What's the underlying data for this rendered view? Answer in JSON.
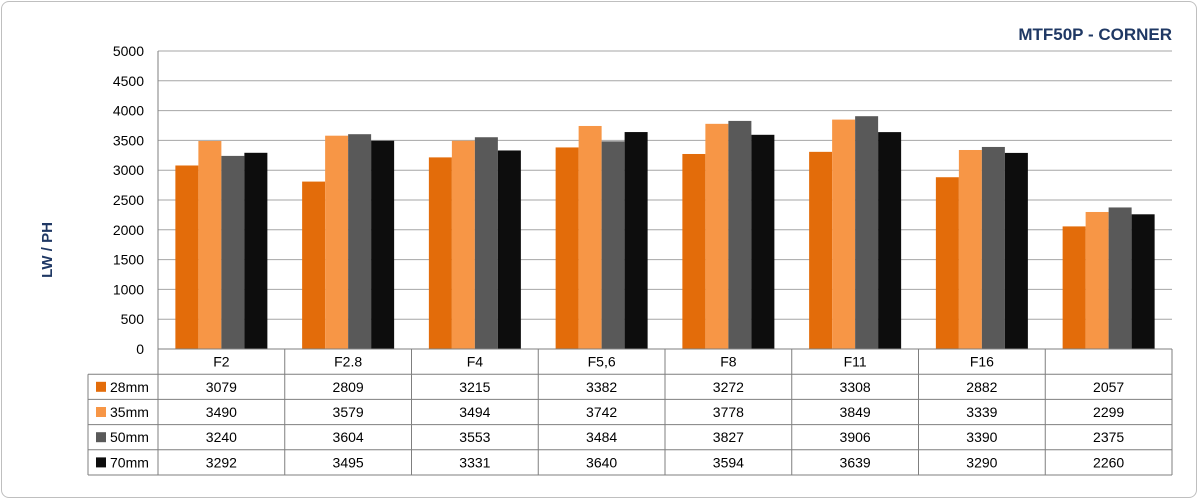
{
  "chart_data": {
    "type": "bar",
    "title": "MTF50P - CORNER",
    "ylabel": "LW / PH",
    "xlabel": "",
    "categories": [
      "F2",
      "F2.8",
      "F4",
      "F5,6",
      "F8",
      "F11",
      "F16",
      ""
    ],
    "ylim": [
      0,
      5000
    ],
    "yticks": [
      0,
      500,
      1000,
      1500,
      2000,
      2500,
      3000,
      3500,
      4000,
      4500,
      5000
    ],
    "grid": true,
    "legend": "data table below chart",
    "series": [
      {
        "name": "28mm",
        "color": "#e36c0a",
        "values": [
          3079,
          2809,
          3215,
          3382,
          3272,
          3308,
          2882,
          2057
        ]
      },
      {
        "name": "35mm",
        "color": "#f79646",
        "values": [
          3490,
          3579,
          3494,
          3742,
          3778,
          3849,
          3339,
          2299
        ]
      },
      {
        "name": "50mm",
        "color": "#595959",
        "values": [
          3240,
          3604,
          3553,
          3484,
          3827,
          3906,
          3390,
          2375
        ]
      },
      {
        "name": "70mm",
        "color": "#0d0d0d",
        "values": [
          3292,
          3495,
          3331,
          3640,
          3594,
          3639,
          3290,
          2260
        ]
      }
    ]
  }
}
